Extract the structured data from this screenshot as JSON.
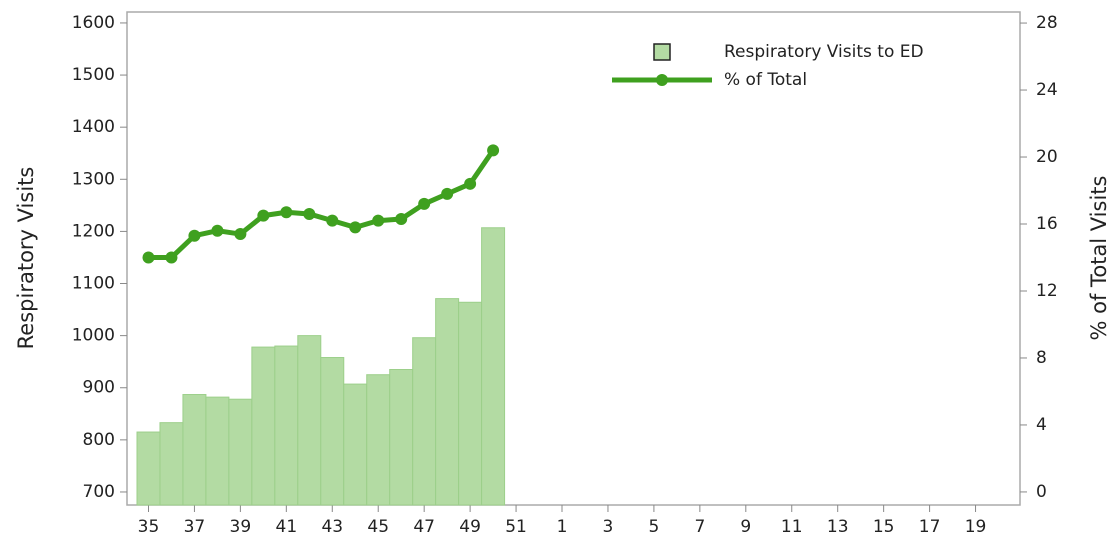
{
  "chart_data": {
    "type": "bar_line",
    "y_label": "Respiratory Visits",
    "y2_label": "% of Total Visits",
    "categories": [
      "35",
      null,
      "37",
      null,
      "39",
      null,
      "41",
      null,
      "43",
      null,
      "45",
      null,
      "47",
      null,
      "49",
      null,
      "51",
      null,
      "1",
      null,
      "3",
      null,
      "5",
      null,
      "7",
      null,
      "9",
      null,
      "11",
      null,
      "13",
      null,
      "15",
      null,
      "17",
      null,
      "19",
      null
    ],
    "series": [
      {
        "name": "Respiratory Visits to ED",
        "type": "bar",
        "color": "#b3dba3",
        "values": [
          815,
          833,
          887,
          882,
          878,
          978,
          980,
          1000,
          958,
          907,
          925,
          935,
          996,
          1071,
          1064,
          1207,
          null,
          null,
          null,
          null,
          null,
          null,
          null,
          null,
          null,
          null,
          null,
          null,
          null,
          null,
          null,
          null,
          null,
          null,
          null,
          null,
          null,
          null
        ]
      },
      {
        "name": "% of Total",
        "type": "line",
        "axis": "y2",
        "color": "#3fa01f",
        "values": [
          14.0,
          14.0,
          15.3,
          15.6,
          15.4,
          16.5,
          16.7,
          16.6,
          16.2,
          15.8,
          16.2,
          16.3,
          17.2,
          17.8,
          18.4,
          20.4,
          null,
          null,
          null,
          null,
          null,
          null,
          null,
          null,
          null,
          null,
          null,
          null,
          null,
          null,
          null,
          null,
          null,
          null,
          null,
          null,
          null,
          null
        ]
      }
    ],
    "ylim": [
      675,
      1621
    ],
    "yticks": [
      700,
      800,
      900,
      1000,
      1100,
      1200,
      1300,
      1400,
      1500,
      1600
    ],
    "y2lim": [
      -0.78,
      28.66
    ],
    "y2ticks": [
      0,
      4,
      8,
      12,
      16,
      20,
      24,
      28
    ],
    "legend": "upper right"
  }
}
